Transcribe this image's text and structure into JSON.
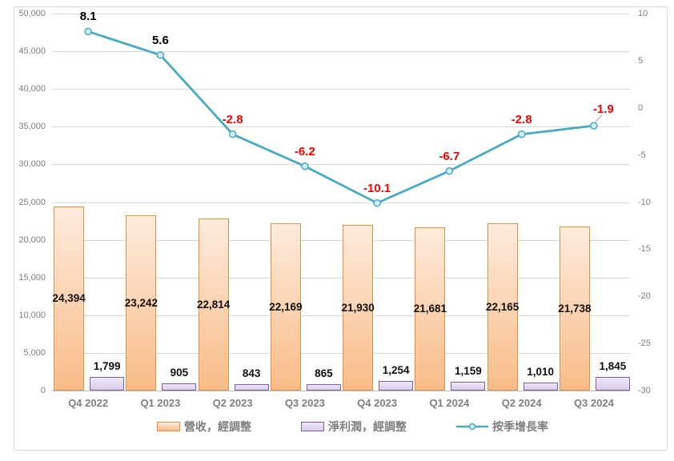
{
  "chart_data": {
    "type": "combo",
    "categories": [
      "Q4 2022",
      "Q1 2023",
      "Q2 2023",
      "Q3 2023",
      "Q4 2023",
      "Q1 2024",
      "Q2 2024",
      "Q3 2024"
    ],
    "series": [
      {
        "name": "營收，經調整",
        "type": "bar",
        "axis": "left",
        "values": [
          24394,
          23242,
          22814,
          22169,
          21930,
          21681,
          22165,
          21738
        ],
        "labels": [
          "24,394",
          "23,242",
          "22,814",
          "22,169",
          "21,930",
          "21,681",
          "22,165",
          "21,738"
        ],
        "fill_top": "#FDEBDD",
        "fill_bottom": "#F8BC88",
        "border": "#ED8F40"
      },
      {
        "name": "淨利潤，經調整",
        "type": "bar",
        "axis": "left",
        "values": [
          1799,
          905,
          843,
          865,
          1254,
          1159,
          1010,
          1845
        ],
        "labels": [
          "1,799",
          "905",
          "843",
          "865",
          "1,254",
          "1,159",
          "1,010",
          "1,845"
        ],
        "fill_top": "#EEE7F6",
        "fill_bottom": "#D8CCE8",
        "border": "#7E5FA0"
      },
      {
        "name": "按季增長率",
        "type": "line",
        "axis": "right",
        "values": [
          8.1,
          5.6,
          -2.8,
          -6.2,
          -10.1,
          -6.7,
          -2.8,
          -1.9
        ],
        "labels": [
          "8.1",
          "5.6",
          "-2.8",
          "-6.2",
          "-10.1",
          "-6.7",
          "-2.8",
          "-1.9"
        ],
        "color": "#45AAC6",
        "marker_fill": "#D6EEF5",
        "positive_label_color": "#000000",
        "negative_label_color": "#FF0000",
        "leader_line_color": "#A6A6A6"
      }
    ],
    "left_axis": {
      "min": 0,
      "max": 50000,
      "step": 5000,
      "ticks": [
        {
          "value": 50000,
          "label": "50,000"
        },
        {
          "value": 45000,
          "label": "45,000"
        },
        {
          "value": 40000,
          "label": "40,000"
        },
        {
          "value": 35000,
          "label": "35,000"
        },
        {
          "value": 30000,
          "label": "30,000"
        },
        {
          "value": 25000,
          "label": "25,000"
        },
        {
          "value": 20000,
          "label": "20,000"
        },
        {
          "value": 15000,
          "label": "15,000"
        },
        {
          "value": 10000,
          "label": "10,000"
        },
        {
          "value": 5000,
          "label": "5,000"
        },
        {
          "value": 0,
          "label": "0"
        }
      ]
    },
    "right_axis": {
      "min": -30,
      "max": 10,
      "step": 5,
      "ticks": [
        {
          "value": 10,
          "label": "10"
        },
        {
          "value": 5,
          "label": "5"
        },
        {
          "value": 0,
          "label": "0"
        },
        {
          "value": -5,
          "label": "-5"
        },
        {
          "value": -10,
          "label": "-10"
        },
        {
          "value": -15,
          "label": "-15"
        },
        {
          "value": -20,
          "label": "-20"
        },
        {
          "value": -25,
          "label": "-25"
        },
        {
          "value": -30,
          "label": "-30"
        }
      ]
    },
    "legend": [
      {
        "key": "revenue",
        "type": "bar",
        "label": "營收，經調整",
        "fill_top": "#FDEBDD",
        "fill_bottom": "#F8BC88",
        "border": "#ED8F40"
      },
      {
        "key": "net-profit",
        "type": "bar",
        "label": "淨利潤，經調整",
        "fill_top": "#EEE7F6",
        "fill_bottom": "#D8CCE8",
        "border": "#7E5FA0"
      },
      {
        "key": "growth-rate",
        "type": "line",
        "label": "按季增長率",
        "color": "#45AAC6",
        "marker_fill": "#D6EEF5"
      }
    ],
    "grid": "horizontal",
    "legend_position": "bottom",
    "title": ""
  }
}
